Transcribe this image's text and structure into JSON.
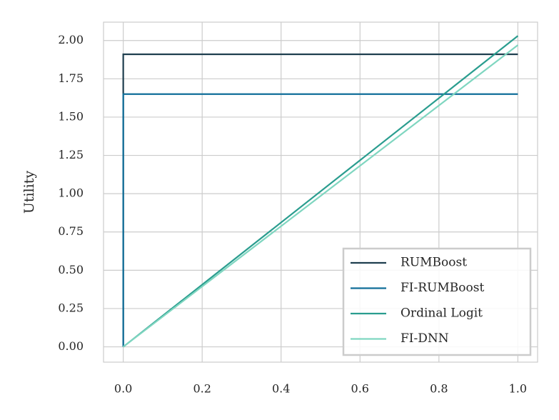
{
  "chart_data": {
    "type": "line",
    "ylabel": "Utility",
    "series": [
      {
        "name": "RUMBoost",
        "color": "#1f3f4f",
        "x": [
          0,
          0,
          1
        ],
        "values": [
          0,
          1.91,
          1.91
        ]
      },
      {
        "name": "FI-RUMBoost",
        "color": "#106e99",
        "x": [
          0,
          0,
          1
        ],
        "values": [
          0,
          1.65,
          1.65
        ]
      },
      {
        "name": "Ordinal Logit",
        "color": "#2a9d8f",
        "x": [
          0,
          1
        ],
        "values": [
          0,
          2.03
        ]
      },
      {
        "name": "FI-DNN",
        "color": "#7fd6c0",
        "x": [
          0,
          1
        ],
        "values": [
          0,
          1.97
        ]
      }
    ],
    "xlim": [
      -0.05,
      1.05
    ],
    "ylim": [
      -0.1,
      2.12
    ],
    "xticks": [
      {
        "value": 0,
        "label": "0.0"
      },
      {
        "value": 0.2,
        "label": "0.2"
      },
      {
        "value": 0.4,
        "label": "0.4"
      },
      {
        "value": 0.6,
        "label": "0.6"
      },
      {
        "value": 0.8,
        "label": "0.8"
      },
      {
        "value": 1,
        "label": "1.0"
      }
    ],
    "yticks": [
      {
        "value": 0,
        "label": "0.00"
      },
      {
        "value": 0.25,
        "label": "0.25"
      },
      {
        "value": 0.5,
        "label": "0.50"
      },
      {
        "value": 0.75,
        "label": "0.75"
      },
      {
        "value": 1,
        "label": "1.00"
      },
      {
        "value": 1.25,
        "label": "1.25"
      },
      {
        "value": 1.5,
        "label": "1.50"
      },
      {
        "value": 1.75,
        "label": "1.75"
      },
      {
        "value": 2,
        "label": "2.00"
      }
    ],
    "grid": true,
    "legend": "lower right"
  }
}
